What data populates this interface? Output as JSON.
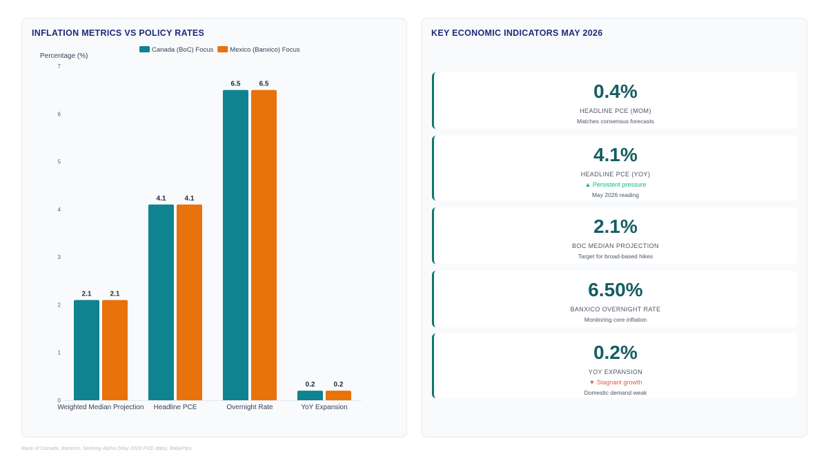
{
  "chart_panel": {
    "title": "INFLATION METRICS VS POLICY RATES"
  },
  "chart_data": {
    "type": "bar",
    "ylabel": "Percentage (%)",
    "xlabel": "",
    "ylim": [
      0,
      7
    ],
    "yticks": [
      0,
      1,
      2,
      3,
      4,
      5,
      6,
      7
    ],
    "categories": [
      "Weighted Median Projection",
      "Headline PCE",
      "Overnight Rate",
      "YoY Expansion"
    ],
    "series": [
      {
        "name": "Canada (BoC) Focus",
        "color": "#0f8390",
        "values": [
          2.1,
          4.1,
          6.5,
          0.2
        ]
      },
      {
        "name": "Mexico (Banxico) Focus",
        "color": "#e8720c",
        "values": [
          2.1,
          4.1,
          6.5,
          0.2
        ]
      }
    ],
    "legend": "top-center",
    "grid": false
  },
  "kpi_panel": {
    "title": "KEY ECONOMIC INDICATORS MAY 2026",
    "cards": [
      {
        "value": "0.4%",
        "label": "HEADLINE PCE (MOM)",
        "trend": "",
        "trend_dir": "",
        "note": "Matches consensus forecasts"
      },
      {
        "value": "4.1%",
        "label": "HEADLINE PCE (YOY)",
        "trend": "▲ Persistent pressure",
        "trend_dir": "up",
        "note": "May 2026 reading"
      },
      {
        "value": "2.1%",
        "label": "BOC MEDIAN PROJECTION",
        "trend": "",
        "trend_dir": "",
        "note": "Target for broad-based hikes"
      },
      {
        "value": "6.50%",
        "label": "BANXICO OVERNIGHT RATE",
        "trend": "",
        "trend_dir": "",
        "note": "Monitoring core inflation"
      },
      {
        "value": "0.2%",
        "label": "YOY EXPANSION",
        "trend": "▼ Stagnant growth",
        "trend_dir": "down",
        "note": "Domestic demand weak"
      }
    ]
  },
  "source": "Bank of Canada, Banxico, Seeking Alpha (May 2026 PCE data), BabyPips"
}
